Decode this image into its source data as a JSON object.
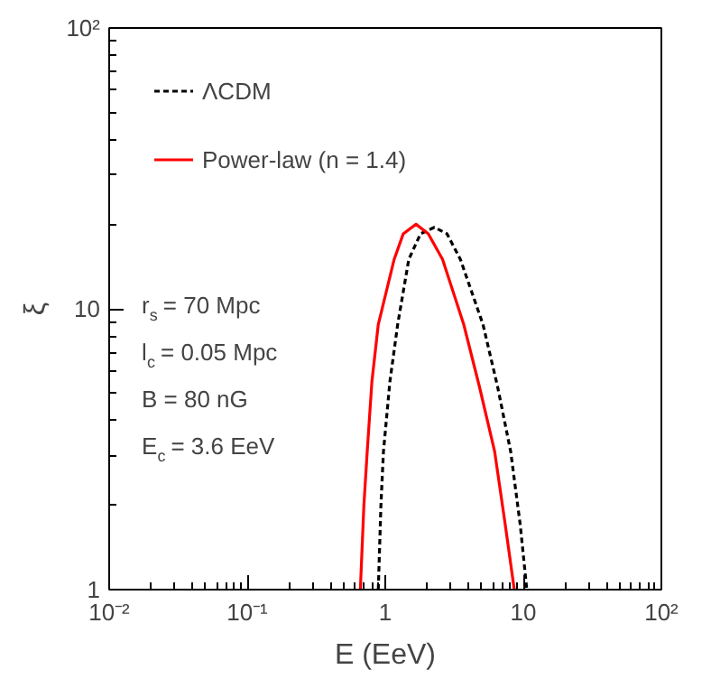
{
  "chart_data": {
    "type": "line",
    "xlabel": "E (EeV)",
    "ylabel": "ξ",
    "log": "xy",
    "grid": false,
    "legend": "top left",
    "xlim": [
      0.01,
      100
    ],
    "ylim": [
      1,
      100
    ],
    "xticks": [
      {
        "value": 0.01,
        "label": "10⁻²"
      },
      {
        "value": 0.1,
        "label": "10⁻¹"
      },
      1,
      10,
      {
        "value": 100,
        "label": "10²"
      }
    ],
    "yticks": [
      1,
      10,
      {
        "value": 100,
        "label": "10²"
      }
    ],
    "series": [
      {
        "name": "ΛCDM",
        "color": "#000000",
        "line_style": "dashed",
        "x": [
          0.89,
          0.93,
          0.97,
          1.08,
          1.23,
          1.48,
          1.8,
          2.27,
          2.8,
          3.5,
          5.1,
          6.5,
          8.1,
          9.5,
          10.6
        ],
        "values": [
          1,
          2,
          3.1,
          5.5,
          8.8,
          15,
          18.5,
          19.5,
          18.5,
          15,
          8.8,
          5.3,
          3.1,
          1.7,
          1
        ]
      },
      {
        "name": "Power-law (n = 1.4)",
        "color": "#ff0000",
        "line_style": "solid",
        "x": [
          0.66,
          0.7,
          0.74,
          0.8,
          0.89,
          1.16,
          1.35,
          1.67,
          2.05,
          2.6,
          3.7,
          4.8,
          6.2,
          7.4,
          8.6
        ],
        "values": [
          1,
          2,
          3.1,
          5.5,
          8.8,
          15,
          18.5,
          20,
          18.5,
          15,
          8.8,
          5.3,
          3.1,
          1.7,
          1
        ]
      }
    ],
    "annotations": [
      "r$_{s}$ = 70 Mpc",
      "l$_{c}$ = 0.05 Mpc",
      "B = 80 nG",
      "E$_{c}$ = 3.6 EeV"
    ]
  }
}
